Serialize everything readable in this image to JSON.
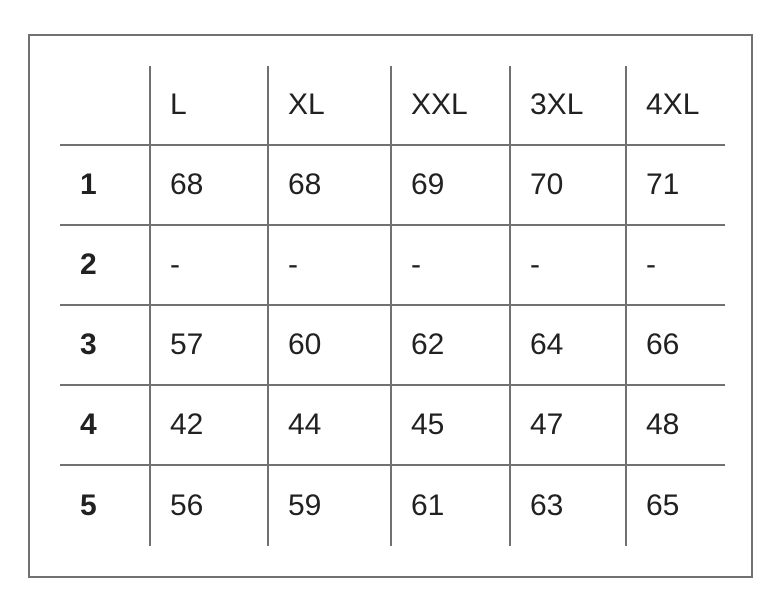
{
  "chart_data": {
    "type": "table",
    "title": "",
    "columns": [
      "",
      "L",
      "XL",
      "XXL",
      "3XL",
      "4XL"
    ],
    "rows": [
      {
        "label": "1",
        "values": [
          "68",
          "68",
          "69",
          "70",
          "71"
        ]
      },
      {
        "label": "2",
        "values": [
          "-",
          "-",
          "-",
          "-",
          "-"
        ]
      },
      {
        "label": "3",
        "values": [
          "57",
          "60",
          "62",
          "64",
          "66"
        ]
      },
      {
        "label": "4",
        "values": [
          "42",
          "44",
          "45",
          "47",
          "48"
        ]
      },
      {
        "label": "5",
        "values": [
          "56",
          "59",
          "61",
          "63",
          "65"
        ]
      }
    ]
  },
  "colors": {
    "frame_border": "#717171",
    "grid_lines": "#717171",
    "text": "#212121",
    "background": "#ffffff"
  }
}
